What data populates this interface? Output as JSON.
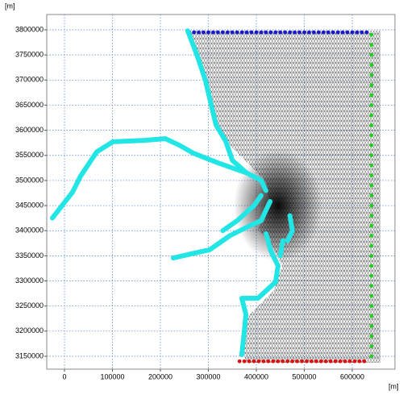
{
  "chart_data": {
    "type": "scatter",
    "x_label": "[m]",
    "y_label": "[m]",
    "xlim": [
      -37000,
      689000
    ],
    "ylim": [
      3124300,
      3830500
    ],
    "xticks": [
      0,
      100000,
      200000,
      300000,
      400000,
      500000,
      600000
    ],
    "yticks": [
      3150000,
      3200000,
      3250000,
      3300000,
      3350000,
      3400000,
      3450000,
      3500000,
      3550000,
      3600000,
      3650000,
      3700000,
      3750000,
      3800000
    ],
    "grid": true,
    "series": [
      {
        "color": "#1a1acc",
        "style": "markers",
        "x": [
          260000,
          270000,
          280000,
          290000,
          300000,
          310000,
          320000,
          330000,
          340000,
          350000,
          360000,
          370000,
          380000,
          390000,
          400000,
          410000,
          420000,
          430000,
          440000,
          450000,
          460000,
          470000,
          480000,
          490000,
          500000,
          510000,
          520000,
          530000,
          540000,
          550000,
          560000,
          570000,
          580000,
          590000,
          600000,
          610000,
          620000,
          630000
        ],
        "y": [
          3795000,
          3795000,
          3795000,
          3795000,
          3795000,
          3795000,
          3795000,
          3795000,
          3795000,
          3795000,
          3795000,
          3795000,
          3795000,
          3795000,
          3795000,
          3795000,
          3795000,
          3795000,
          3795000,
          3795000,
          3795000,
          3795000,
          3795000,
          3795000,
          3795000,
          3795000,
          3795000,
          3795000,
          3795000,
          3795000,
          3795000,
          3795000,
          3795000,
          3795000,
          3795000,
          3795000,
          3795000,
          3795000
        ]
      },
      {
        "color": "#22cc22",
        "style": "markers",
        "x": [
          640000,
          640000,
          640000,
          640000,
          640000,
          640000,
          640000,
          640000,
          640000,
          640000,
          640000,
          640000,
          640000,
          640000,
          640000,
          640000,
          640000,
          640000,
          640000,
          640000,
          640000,
          640000,
          640000,
          640000,
          640000,
          640000,
          640000,
          640000,
          640000,
          640000,
          640000,
          640000,
          640000
        ],
        "y": [
          3790000,
          3770000,
          3750000,
          3730000,
          3710000,
          3690000,
          3670000,
          3650000,
          3630000,
          3610000,
          3590000,
          3570000,
          3550000,
          3530000,
          3510000,
          3490000,
          3470000,
          3450000,
          3430000,
          3410000,
          3390000,
          3370000,
          3350000,
          3330000,
          3310000,
          3290000,
          3270000,
          3250000,
          3230000,
          3210000,
          3190000,
          3170000,
          3150000
        ]
      },
      {
        "color": "#dd1111",
        "style": "markers",
        "x": [
          365000,
          375000,
          385000,
          395000,
          405000,
          415000,
          425000,
          435000,
          445000,
          455000,
          465000,
          475000,
          485000,
          495000,
          505000,
          515000,
          525000,
          535000,
          545000,
          555000,
          565000,
          575000,
          585000,
          595000,
          605000,
          615000,
          625000
        ],
        "y": [
          3140000,
          3140000,
          3140000,
          3140000,
          3140000,
          3140000,
          3140000,
          3140000,
          3140000,
          3140000,
          3140000,
          3140000,
          3140000,
          3140000,
          3140000,
          3140000,
          3140000,
          3140000,
          3140000,
          3140000,
          3140000,
          3140000,
          3140000,
          3140000,
          3140000,
          3140000,
          3140000
        ]
      },
      {
        "color": "#22e5e5",
        "style": "line",
        "x": [
          257000,
          277300,
          294100,
          305900,
          316000,
          336100,
          350000,
          380000,
          410000,
          420000,
          null,
          268900,
          240000,
          210100,
          168100,
          100800,
          67200,
          33600,
          16800,
          -25200,
          null,
          268900,
          320000,
          380000,
          null,
          410000,
          395000,
          360000,
          330000,
          null,
          428600,
          410000,
          386600,
          344500,
          302500,
          268900,
          226900,
          null,
          420200,
          430000,
          445400,
          440000,
          403400,
          369700,
          378200,
          375000,
          369700,
          null,
          470000,
          475000,
          465000,
          null,
          455000,
          450000
        ],
        "y": [
          3798000,
          3747000,
          3698800,
          3650600,
          3610500,
          3578400,
          3540000,
          3515000,
          3500000,
          3480000,
          null,
          3554300,
          3570000,
          3583300,
          3580000,
          3577000,
          3557000,
          3508800,
          3476700,
          3425300,
          null,
          3554300,
          3535000,
          3515000,
          null,
          3470000,
          3450000,
          3420000,
          3400000,
          null,
          3458100,
          3420000,
          3410000,
          3390000,
          3361800,
          3355000,
          3345700,
          null,
          3393900,
          3360000,
          3330000,
          3297600,
          3265500,
          3265500,
          3233400,
          3201300,
          3153100,
          null,
          3430000,
          3400000,
          3380000,
          null,
          3380000,
          3350000
        ]
      }
    ]
  }
}
